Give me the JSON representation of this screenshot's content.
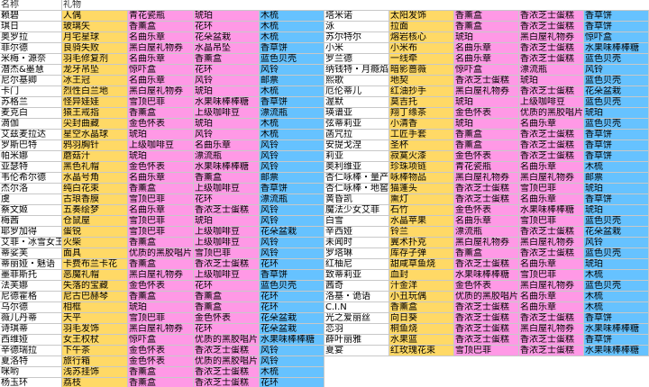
{
  "header": {
    "name": "名称",
    "gift": "礼物"
  },
  "colors": {
    "o": "#ffd966",
    "p": "#ff99e6",
    "b": "#66c2ff",
    "w": "#ffffff"
  },
  "rows": [
    {
      "cells": [
        "赖碧",
        "人偶",
        "青花瓷瓶",
        "琥珀",
        "木梳",
        "塔米诺",
        "太阳发饰",
        "香薰盒",
        "香浓芝士蛋糕",
        "香草饼"
      ],
      "colors": [
        "w",
        "o",
        "p",
        "p",
        "b",
        "w",
        "o",
        "p",
        "p",
        "b"
      ]
    },
    {
      "cells": [
        "琪日",
        "玻璃矢",
        "香薰盒",
        "花环",
        "木梳",
        "泳",
        "拉面",
        "香薰盒",
        "香浓芝士蛋糕",
        "香草饼"
      ],
      "colors": [
        "w",
        "o",
        "p",
        "p",
        "b",
        "w",
        "o",
        "p",
        "p",
        "b"
      ]
    },
    {
      "cells": [
        "奥罗拉",
        "月宅星球",
        "名曲乐章",
        "花朵盆栽",
        "木梳",
        "苏尔特尔",
        "熔岩核心",
        "琥珀",
        "黑白屋礼物券",
        "惊吓盒"
      ],
      "colors": [
        "w",
        "o",
        "p",
        "p",
        "b",
        "w",
        "o",
        "p",
        "p",
        "b"
      ]
    },
    {
      "cells": [
        "菲尔德",
        "良骑失败",
        "黑白屋礼物券",
        "水晶吊坠",
        "香草饼",
        "小米",
        "小米布",
        "名曲乐章",
        "香浓芝士蛋糕",
        "水果味棒棒糖"
      ],
      "colors": [
        "w",
        "o",
        "p",
        "p",
        "b",
        "w",
        "o",
        "p",
        "p",
        "b"
      ]
    },
    {
      "cells": [
        "米梅・源奈",
        "羽毛修复剂",
        "名曲乐章",
        "香薰盒",
        "蓝色贝壳",
        "罗兰德",
        "一线牵",
        "名曲乐章",
        "香浓芝士蛋糕",
        "蓝色贝壳"
      ],
      "colors": [
        "w",
        "o",
        "p",
        "p",
        "b",
        "w",
        "o",
        "p",
        "p",
        "b"
      ]
    },
    {
      "cells": [
        "潜杰&墨慧",
        "龙牙吊坠",
        "惊吓盒",
        "花环",
        "风铃",
        "纳钱特・月瘾焰",
        "暗影蔷薇",
        "惊吓盒",
        "漂流瓶",
        "风铃"
      ],
      "colors": [
        "w",
        "o",
        "p",
        "p",
        "b",
        "w",
        "o",
        "p",
        "p",
        "b"
      ]
    },
    {
      "cells": [
        "尼尔基卿",
        "冰王冠",
        "名曲乐章",
        "风铃",
        "邮票",
        "熙歌",
        "地契",
        "香浓芝士蛋糕",
        "琥珀",
        "蓝色贝壳"
      ],
      "colors": [
        "w",
        "o",
        "p",
        "p",
        "b",
        "w",
        "o",
        "p",
        "p",
        "b"
      ]
    },
    {
      "cells": [
        "卡门",
        "烈性白兰地",
        "黑白屋礼物券",
        "琥珀",
        "木梳",
        "厄伦蒂儿",
        "红油抄手",
        "黑白屋礼物券",
        "香浓芝士蛋糕",
        "花朵盆栽"
      ],
      "colors": [
        "w",
        "o",
        "p",
        "p",
        "b",
        "w",
        "o",
        "p",
        "p",
        "b"
      ]
    },
    {
      "cells": [
        "苏格兰",
        "怪异娃娃",
        "雪顶巴菲",
        "水果味棒棒糖",
        "香草饼",
        "渥默",
        "莫吉托",
        "琥珀",
        "上级咖啡豆",
        "蓝色贝壳"
      ],
      "colors": [
        "w",
        "o",
        "p",
        "p",
        "b",
        "w",
        "o",
        "p",
        "p",
        "b"
      ]
    },
    {
      "cells": [
        "麦克白",
        "猿王戒指",
        "香薰盒",
        "上级咖啡豆",
        "漂流瓶",
        "瑛谱亚",
        "翔丁缘茶",
        "金色怀表",
        "优质的黑胶唱片",
        "琥珀"
      ],
      "colors": [
        "w",
        "o",
        "p",
        "p",
        "b",
        "w",
        "o",
        "p",
        "p",
        "b"
      ]
    },
    {
      "cells": [
        "滴伽",
        "尖封曲藏",
        "金色怀表",
        "琥珀",
        "木梳",
        "弦蒂莉亚",
        "小清香",
        "琥珀",
        "名曲乐章",
        "蓝色贝壳"
      ],
      "colors": [
        "w",
        "o",
        "p",
        "p",
        "b",
        "w",
        "o",
        "p",
        "p",
        "b"
      ]
    },
    {
      "cells": [
        "艾兹麦拉达",
        "星空水晶球",
        "琥珀",
        "风铃",
        "木梳",
        "菡咒拉",
        "工匠手套",
        "香薰盒",
        "香浓芝士蛋糕",
        "香草饼"
      ],
      "colors": [
        "w",
        "o",
        "p",
        "p",
        "b",
        "w",
        "o",
        "p",
        "p",
        "b"
      ]
    },
    {
      "cells": [
        "罗斯巴特",
        "鸦羽胸针",
        "上级咖啡豆",
        "名曲乐章",
        "风铃",
        "安提戈涅",
        "圣杯",
        "香薰盒",
        "香浓芝士蛋糕",
        "香草饼"
      ],
      "colors": [
        "w",
        "o",
        "p",
        "p",
        "b",
        "w",
        "o",
        "p",
        "p",
        "b"
      ]
    },
    {
      "cells": [
        "帕米娜",
        "蘑菇汁",
        "琥珀",
        "漂流瓶",
        "风铃",
        "莉亚",
        "寂寞火漆",
        "金色怀表",
        "香浓芝士蛋糕",
        "香草饼"
      ],
      "colors": [
        "w",
        "o",
        "p",
        "p",
        "b",
        "w",
        "o",
        "p",
        "p",
        "b"
      ]
    },
    {
      "cells": [
        "亚瑟特",
        "黑色礼帽",
        "金色怀表",
        "水果味棒棒糖",
        "风铃",
        "奥利维亚",
        "珍珠项链",
        "青花瓷瓶",
        "名曲乐章",
        "木梳"
      ],
      "colors": [
        "w",
        "o",
        "p",
        "p",
        "b",
        "w",
        "o",
        "p",
        "p",
        "b"
      ]
    },
    {
      "cells": [
        "韦伦希尔德",
        "水晶号角",
        "名曲乐章",
        "香薰盒",
        "邮票",
        "杏仁咏棒・量产",
        "咏棒物品",
        "黑白屋礼物券",
        "黑白屋礼物券",
        "邮票"
      ],
      "colors": [
        "w",
        "o",
        "p",
        "p",
        "b",
        "w",
        "o",
        "p",
        "p",
        "b"
      ]
    },
    {
      "cells": [
        "杰尔洛",
        "纯白花束",
        "香薰盒",
        "上级咖啡豆",
        "香草饼",
        "杏仁咏棒・地窖",
        "猫蓬头",
        "香浓芝士蛋糕",
        "雪顶巴菲",
        "琥珀"
      ],
      "colors": [
        "w",
        "o",
        "p",
        "p",
        "b",
        "w",
        "o",
        "p",
        "p",
        "b"
      ]
    },
    {
      "cells": [
        "虞",
        "古琅香膜",
        "雪顶巴菲",
        "花环",
        "漂流瓶",
        "黄昏凯",
        "熏灯",
        "香浓芝士蛋糕",
        "名曲乐章",
        "香草饼"
      ],
      "colors": [
        "w",
        "o",
        "p",
        "p",
        "b",
        "w",
        "o",
        "p",
        "p",
        "b"
      ]
    },
    {
      "cells": [
        "蔡文姬",
        "五奏绘梦",
        "名曲乐章",
        "香浓芝士蛋糕",
        "风铃",
        "魔法少女艾菲",
        "石竹",
        "金色怀表",
        "水果味棒棒糖",
        "琥珀"
      ],
      "colors": [
        "w",
        "o",
        "p",
        "p",
        "b",
        "w",
        "o",
        "p",
        "p",
        "b"
      ]
    },
    {
      "cells": [
        "梅茜",
        "仓鼠屋",
        "雪顶巴菲",
        "琥珀",
        "风铃",
        "白雪",
        "水晶苹果",
        "名曲乐章",
        "雪顶巴菲",
        "蓝色贝壳"
      ],
      "colors": [
        "w",
        "o",
        "p",
        "p",
        "b",
        "w",
        "o",
        "p",
        "p",
        "b"
      ]
    },
    {
      "cells": [
        "耶罗加得",
        "蛋锐",
        "雪顶巴菲",
        "上级咖啡豆",
        "花朵盆栽",
        "辛西娅",
        "铃兰",
        "漂流瓶",
        "香浓芝士蛋糕",
        "花朵盆栽"
      ],
      "colors": [
        "w",
        "o",
        "p",
        "p",
        "b",
        "w",
        "o",
        "p",
        "p",
        "b"
      ]
    },
    {
      "cells": [
        "艾菲・冰雪女王",
        "火柴",
        "香薰盒",
        "上级咖啡豆",
        "风铃",
        "未闻时",
        "翼术扑克",
        "黑白屋礼物券",
        "黑白屋礼物券",
        "风铃"
      ],
      "colors": [
        "w",
        "o",
        "p",
        "p",
        "b",
        "w",
        "o",
        "p",
        "p",
        "b"
      ]
    },
    {
      "cells": [
        "蒂娑芙",
        "面具",
        "优质的黑胶唱片",
        "雪顶巴菲",
        "风铃",
        "罗塔琳",
        "库存子弹",
        "香薰盒",
        "香浓芝士蛋糕",
        "蓝色贝壳"
      ],
      "colors": [
        "w",
        "o",
        "p",
        "p",
        "b",
        "w",
        "o",
        "p",
        "p",
        "b"
      ]
    },
    {
      "cells": [
        "蒂丽娅・魅语",
        "卡费布兰卡花",
        "香薰盒",
        "香浓芝士蛋糕",
        "花环",
        "红柚尼",
        "甜咸草鱼烧",
        "香浓芝士蛋糕",
        "名曲乐章",
        "琥珀"
      ],
      "colors": [
        "w",
        "o",
        "p",
        "p",
        "b",
        "w",
        "o",
        "p",
        "p",
        "b"
      ]
    },
    {
      "cells": [
        "墨菲斯托",
        "恶魔礼帽",
        "黑白屋礼物券",
        "上级咖啡豆",
        "香草饼",
        "致蒂莉亚",
        "血封",
        "水果味棒棒糖",
        "雪顶巴菲",
        "木梳"
      ],
      "colors": [
        "w",
        "o",
        "p",
        "p",
        "b",
        "w",
        "o",
        "p",
        "p",
        "b"
      ]
    },
    {
      "cells": [
        "法芙娜",
        "失落的宝藏",
        "金色怀表",
        "花环",
        "蓝色贝壳",
        "茜奇",
        "汁金洋",
        "金色怀表",
        "黑白屋礼物券",
        "蓝色贝壳"
      ],
      "colors": [
        "w",
        "o",
        "p",
        "p",
        "b",
        "w",
        "o",
        "p",
        "p",
        "b"
      ]
    },
    {
      "cells": [
        "尼德霍格",
        "尼古巴赫琴",
        "香薰盒",
        "香薰盒",
        "花环",
        "洛基・诡语",
        "小丑玩偶",
        "优质的黑胶唱片",
        "名曲乐章",
        "木梳"
      ],
      "colors": [
        "w",
        "o",
        "p",
        "p",
        "b",
        "w",
        "o",
        "p",
        "p",
        "b"
      ]
    },
    {
      "cells": [
        "乌尔德",
        "相框",
        "琥珀",
        "香薰盒",
        "花环",
        "C.I.N",
        "香薰盒",
        "香浓芝士蛋糕",
        "名曲乐章",
        "木梳"
      ],
      "colors": [
        "w",
        "o",
        "p",
        "p",
        "b",
        "w",
        "o",
        "p",
        "p",
        "b"
      ]
    },
    {
      "cells": [
        "薇儿丹蒂",
        "天平",
        "雪顶巴菲",
        "金色怀表",
        "花朵盆栽",
        "光之爱丽丝",
        "向日葵",
        "香浓芝士蛋糕",
        "香浓芝士蛋糕",
        "香草饼"
      ],
      "colors": [
        "w",
        "o",
        "p",
        "p",
        "b",
        "w",
        "o",
        "p",
        "p",
        "b"
      ]
    },
    {
      "cells": [
        "诗琪蒂",
        "羽毛发饰",
        "黑白屋礼物券",
        "花环",
        "花朵盆栽",
        "恋羽",
        "桐鱼烧",
        "香浓芝士蛋糕",
        "黑白屋礼物券",
        "水果味棒棒糖"
      ],
      "colors": [
        "w",
        "o",
        "p",
        "p",
        "b",
        "w",
        "o",
        "p",
        "p",
        "b"
      ]
    },
    {
      "cells": [
        "西维娅",
        "女王权杖",
        "惊吓盒",
        "优质的黑胶唱片",
        "水果味棒棒糖",
        "薛叶丽雅",
        "水果篮",
        "香浓芝士蛋糕",
        "香浓芝士蛋糕",
        "香草饼"
      ],
      "colors": [
        "w",
        "o",
        "p",
        "p",
        "b",
        "w",
        "o",
        "p",
        "p",
        "b"
      ]
    },
    {
      "cells": [
        "辛德瑞拉",
        "下午茶",
        "金色怀表",
        "香浓芝士蛋糕",
        "风铃",
        "夏宴",
        "红玫瑰花束",
        "雪顶巴菲",
        "香浓芝士蛋糕",
        "水果味棒棒糖"
      ],
      "colors": [
        "w",
        "o",
        "p",
        "p",
        "b",
        "w",
        "o",
        "p",
        "p",
        "b"
      ]
    },
    {
      "cells": [
        "夏洛特",
        "旅行箱",
        "金色怀表",
        "优质的黑胶唱片",
        "风铃"
      ],
      "colors": [
        "w",
        "o",
        "p",
        "p",
        "b"
      ]
    },
    {
      "cells": [
        "咪哟",
        "浅苏挂饰",
        "香薰盒",
        "香浓芝士蛋糕",
        "木梳"
      ],
      "colors": [
        "w",
        "o",
        "p",
        "p",
        "b"
      ]
    },
    {
      "cells": [
        "杨玉环",
        "荔枝",
        "香薰盒",
        "香浓芝士蛋糕",
        "花环"
      ],
      "colors": [
        "w",
        "o",
        "p",
        "p",
        "b"
      ]
    }
  ]
}
